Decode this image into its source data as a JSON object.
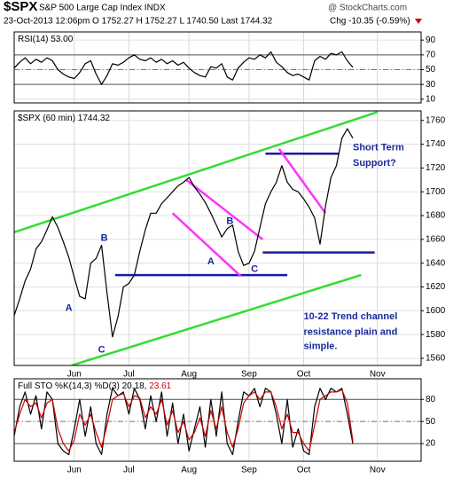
{
  "header": {
    "symbol": "$SPX",
    "name": "S&P 500 Large Cap Index INDX",
    "quote": "23-Oct-2013 12:06pm O 1752.27 H 1752.27 L 1740.50 Last 1744.32",
    "change": "Chg -10.35 (-0.59%)",
    "credit": "@ StockCharts.com"
  },
  "chart_data": [
    {
      "type": "line",
      "label": "RSI(14) 53.00",
      "x": [
        -22,
        -20,
        -18,
        -16,
        -14,
        -12,
        -10,
        -8,
        -6,
        -4,
        -2,
        0,
        2,
        4,
        6,
        8,
        10,
        12,
        14,
        16,
        18,
        20,
        22,
        24,
        26,
        28,
        30,
        32,
        34,
        36,
        38,
        40,
        42,
        44,
        46,
        48,
        50,
        52,
        54,
        56,
        58,
        60,
        62,
        64,
        66,
        68,
        70,
        72,
        74,
        76,
        78,
        80,
        82,
        84,
        86,
        88,
        90,
        92,
        94,
        96,
        98,
        100,
        102
      ],
      "series": [
        {
          "color": "#000000",
          "values": [
            52,
            60,
            66,
            58,
            64,
            60,
            66,
            62,
            50,
            44,
            40,
            38,
            46,
            58,
            62,
            44,
            30,
            42,
            58,
            56,
            60,
            66,
            70,
            64,
            62,
            66,
            60,
            64,
            58,
            62,
            56,
            60,
            52,
            46,
            42,
            40,
            54,
            52,
            58,
            40,
            36,
            52,
            60,
            66,
            64,
            70,
            66,
            74,
            60,
            54,
            46,
            42,
            44,
            40,
            36,
            62,
            68,
            64,
            72,
            70,
            74,
            62,
            53
          ]
        }
      ],
      "xlim": [
        -22,
        127
      ],
      "xticks": [
        0,
        20,
        42,
        64,
        84,
        111
      ],
      "ylim": [
        5,
        101
      ],
      "yticks": [
        90,
        70,
        50,
        30,
        10
      ],
      "reference_lines": [
        70,
        30
      ],
      "mid_line": 50,
      "grid": true
    },
    {
      "type": "line",
      "label": "$SPX (60 min) 1744.32",
      "x": [
        -22,
        -20,
        -18,
        -16,
        -14,
        -12,
        -10,
        -8,
        -6,
        -4,
        -2,
        0,
        2,
        4,
        6,
        8,
        10,
        12,
        14,
        16,
        18,
        20,
        22,
        24,
        26,
        28,
        30,
        32,
        34,
        36,
        38,
        40,
        42,
        44,
        46,
        48,
        50,
        52,
        54,
        56,
        58,
        60,
        62,
        64,
        66,
        68,
        70,
        72,
        74,
        76,
        78,
        80,
        82,
        84,
        86,
        88,
        90,
        92,
        94,
        96,
        98,
        100,
        102
      ],
      "series": [
        {
          "color": "#000000",
          "values": [
            1596,
            1610,
            1625,
            1635,
            1652,
            1658,
            1668,
            1679,
            1670,
            1658,
            1645,
            1628,
            1612,
            1610,
            1640,
            1644,
            1655,
            1615,
            1578,
            1595,
            1620,
            1623,
            1630,
            1650,
            1668,
            1682,
            1682,
            1690,
            1695,
            1700,
            1705,
            1708,
            1712,
            1704,
            1698,
            1691,
            1682,
            1672,
            1662,
            1669,
            1672,
            1650,
            1638,
            1640,
            1650,
            1670,
            1690,
            1700,
            1708,
            1722,
            1708,
            1702,
            1700,
            1694,
            1687,
            1678,
            1656,
            1688,
            1712,
            1722,
            1745,
            1753,
            1745
          ]
        }
      ],
      "xlim": [
        -22,
        127
      ],
      "xticks": [
        {
          "value": 0,
          "label": "Jun"
        },
        {
          "value": 20,
          "label": "Jul"
        },
        {
          "value": 42,
          "label": "Aug"
        },
        {
          "value": 64,
          "label": "Sep"
        },
        {
          "value": 84,
          "label": "Oct"
        },
        {
          "value": 111,
          "label": "Nov"
        }
      ],
      "ylim": [
        1554,
        1768
      ],
      "yticks": [
        1760,
        1740,
        1720,
        1700,
        1680,
        1660,
        1640,
        1620,
        1600,
        1580,
        1560
      ],
      "grid": true,
      "trendlines": [
        {
          "color": "#33dd33",
          "x": [
            -22,
            111
          ],
          "y": [
            1666,
            1767
          ]
        },
        {
          "color": "#33dd33",
          "x": [
            -1,
            105
          ],
          "y": [
            1554,
            1630
          ]
        },
        {
          "color": "#1a1aa0",
          "x": [
            15,
            78
          ],
          "y": [
            1630,
            1630
          ]
        },
        {
          "color": "#1a1aa0",
          "x": [
            70,
            97
          ],
          "y": [
            1732,
            1732
          ]
        },
        {
          "color": "#1a1aa0",
          "x": [
            69,
            110
          ],
          "y": [
            1649,
            1649
          ]
        },
        {
          "color": "#ff33ff",
          "x": [
            41,
            69
          ],
          "y": [
            1710,
            1660
          ]
        },
        {
          "color": "#ff33ff",
          "x": [
            36,
            61
          ],
          "y": [
            1682,
            1629
          ]
        },
        {
          "color": "#ff33ff",
          "x": [
            75,
            92
          ],
          "y": [
            1736,
            1682
          ]
        }
      ],
      "annotations": [
        {
          "text": "A",
          "x": -2,
          "y": 1602
        },
        {
          "text": "B",
          "x": 11,
          "y": 1661
        },
        {
          "text": "C",
          "x": 10,
          "y": 1567
        },
        {
          "text": "A",
          "x": 50,
          "y": 1641
        },
        {
          "text": "B",
          "x": 57,
          "y": 1675
        },
        {
          "text": "C",
          "x": 66,
          "y": 1635
        },
        {
          "text": "Short Term",
          "x": 102,
          "y": 1737
        },
        {
          "text": "Support?",
          "x": 102,
          "y": 1724
        },
        {
          "text": "10-22 Trend channel",
          "x": 84,
          "y": 1595
        },
        {
          "text": "resistance plain and",
          "x": 84,
          "y": 1582
        },
        {
          "text": "simple.",
          "x": 84,
          "y": 1570
        }
      ],
      "annotation_color": "#1a2a9a"
    },
    {
      "type": "line",
      "label": "Full STO %K(14,3) %D(3) 20.18,",
      "label_d": "23.61",
      "x": [
        -22,
        -20,
        -18,
        -16,
        -14,
        -12,
        -10,
        -8,
        -6,
        -4,
        -2,
        0,
        2,
        4,
        6,
        8,
        10,
        12,
        14,
        16,
        18,
        20,
        22,
        24,
        26,
        28,
        30,
        32,
        34,
        36,
        38,
        40,
        42,
        44,
        46,
        48,
        50,
        52,
        54,
        56,
        58,
        60,
        62,
        64,
        66,
        68,
        70,
        72,
        74,
        76,
        78,
        80,
        82,
        84,
        86,
        88,
        90,
        92,
        94,
        96,
        98,
        100,
        102
      ],
      "series": [
        {
          "color": "#000000",
          "values": [
            30,
            70,
            90,
            60,
            85,
            40,
            90,
            80,
            20,
            10,
            5,
            40,
            80,
            30,
            70,
            20,
            5,
            60,
            95,
            85,
            90,
            60,
            95,
            80,
            40,
            85,
            50,
            90,
            30,
            75,
            20,
            60,
            10,
            40,
            70,
            15,
            80,
            30,
            90,
            20,
            5,
            50,
            90,
            85,
            95,
            70,
            95,
            90,
            60,
            20,
            80,
            15,
            40,
            10,
            5,
            70,
            95,
            80,
            95,
            90,
            95,
            60,
            20
          ]
        },
        {
          "color": "#cc0000",
          "values": [
            35,
            60,
            80,
            70,
            75,
            55,
            75,
            80,
            40,
            20,
            10,
            25,
            60,
            45,
            60,
            35,
            15,
            45,
            80,
            85,
            88,
            70,
            85,
            82,
            55,
            70,
            60,
            80,
            45,
            65,
            35,
            50,
            25,
            35,
            55,
            30,
            65,
            40,
            70,
            35,
            15,
            40,
            75,
            85,
            90,
            80,
            90,
            90,
            70,
            40,
            60,
            35,
            35,
            20,
            10,
            45,
            80,
            85,
            90,
            90,
            93,
            75,
            24
          ]
        }
      ],
      "xlim": [
        -22,
        127
      ],
      "xticks": [
        {
          "value": 0,
          "label": "Jun"
        },
        {
          "value": 20,
          "label": "Jul"
        },
        {
          "value": 42,
          "label": "Aug"
        },
        {
          "value": 64,
          "label": "Sep"
        },
        {
          "value": 84,
          "label": "Oct"
        },
        {
          "value": 111,
          "label": "Nov"
        }
      ],
      "ylim": [
        -4,
        108
      ],
      "yticks": [
        80,
        50,
        20
      ],
      "reference_lines": [
        80,
        20
      ],
      "mid_line": 50,
      "grid": true
    }
  ]
}
